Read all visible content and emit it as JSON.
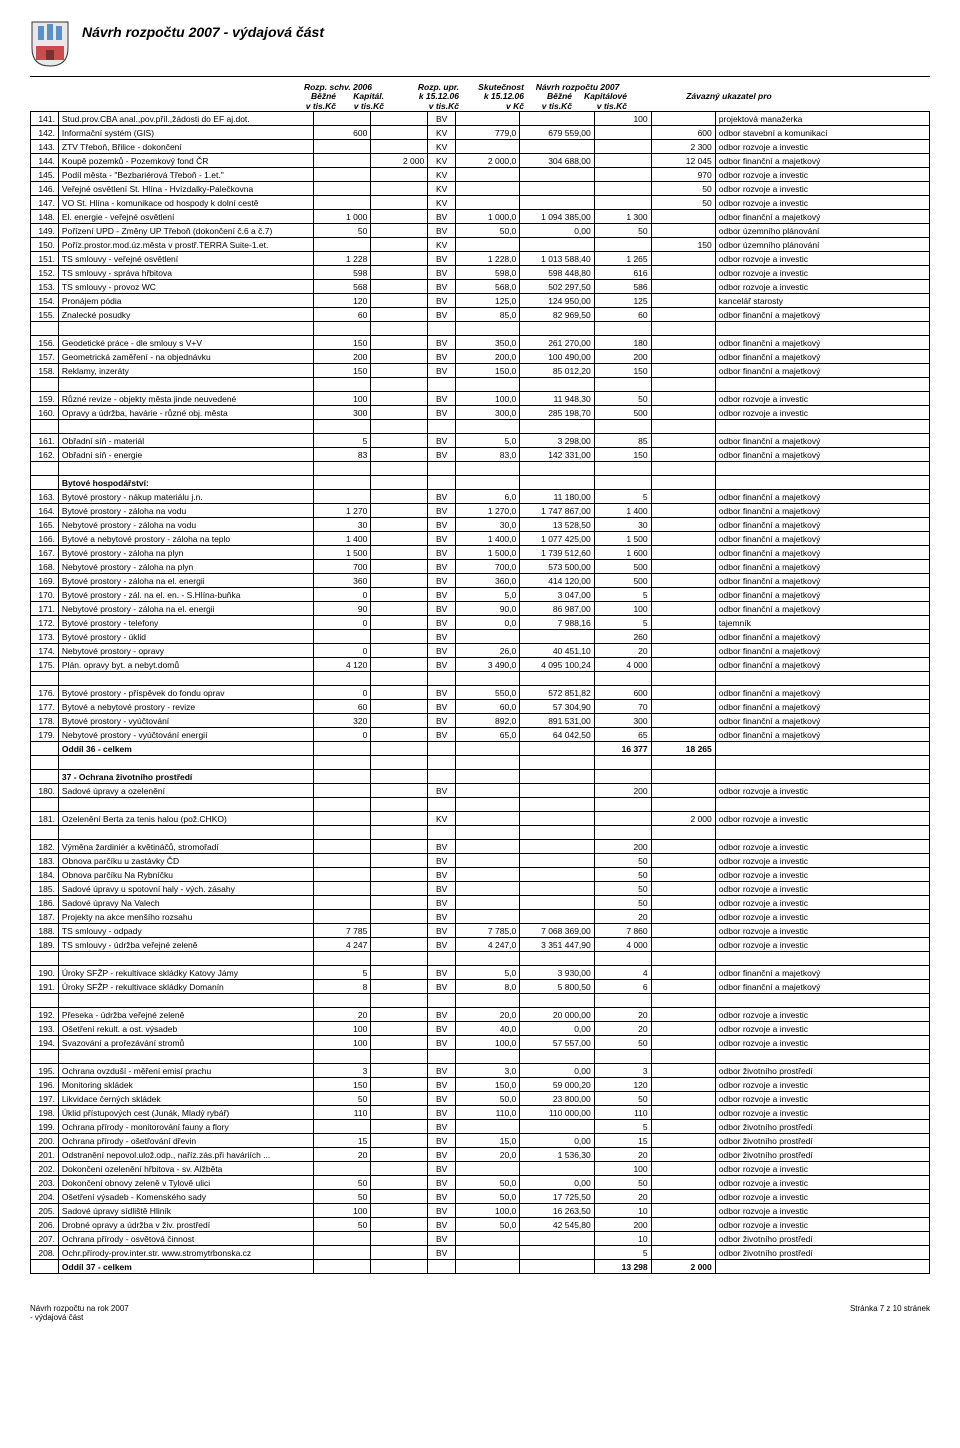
{
  "title": "Návrh rozpočtu 2007 - výdajová část",
  "headers": {
    "h1": {
      "a": "Rozp. schv. 2006",
      "b": "Běžné",
      "c": "Kapitál.",
      "d": "v tis.Kč",
      "e": "v tis.Kč"
    },
    "h2": {
      "a": "Rozp. upr.",
      "b": "k 15.12.06",
      "c": "v tis.Kč"
    },
    "h3": {
      "a": "Skutečnost",
      "b": "k 15.12.06",
      "c": "v Kč"
    },
    "h4": {
      "a": "Návrh rozpočtu 2007",
      "b": "Běžné",
      "c": "Kapitálové",
      "d": "v tis.Kč",
      "e": "v tis.Kč"
    },
    "h5": "Závazný ukazatel pro"
  },
  "footer": {
    "left1": "Návrh rozpočtu na rok 2007",
    "left2": "- výdajová část",
    "right": "Stránka 7 z 10 stránek"
  },
  "rows": [
    {
      "n": "141.",
      "d": "Stud.prov.CBA anal.,pov.příl.,žádosti do EF aj.dot.",
      "t": "BV",
      "navb": "100",
      "note": "projektová manažerka"
    },
    {
      "n": "142.",
      "d": "Informační systém (GIS)",
      "b": "600",
      "t": "KV",
      "upr": "779,0",
      "skut": "679 559,00",
      "navk": "600",
      "note": "odbor stavební a komunikací"
    },
    {
      "n": "143.",
      "d": "ZTV Třeboň, Břilice - dokončení",
      "t": "KV",
      "navk": "2 300",
      "note": "odbor rozvoje a investic"
    },
    {
      "n": "144.",
      "d": "Koupě pozemků - Pozemkový fond ČR",
      "k": "2 000",
      "t": "KV",
      "upr": "2 000,0",
      "skut": "304 688,00",
      "navk": "12 045",
      "note": "odbor finanční a majetkový"
    },
    {
      "n": "145.",
      "d": "Podíl města - \"Bezbariérová Třeboň - 1.et.\"",
      "t": "KV",
      "navk": "970",
      "note": "odbor rozvoje a investic"
    },
    {
      "n": "146.",
      "d": "Veřejné osvětlení St. Hlína - Hvízdalky-Palečkovna",
      "t": "KV",
      "navk": "50",
      "note": "odbor rozvoje a investic"
    },
    {
      "n": "147.",
      "d": "VO St. Hlína - komunikace od hospody k dolní cestě",
      "t": "KV",
      "navk": "50",
      "note": "odbor rozvoje a investic"
    },
    {
      "n": "148.",
      "d": "El. energie - veřejné osvětlení",
      "b": "1 000",
      "t": "BV",
      "upr": "1 000,0",
      "skut": "1 094 385,00",
      "navb": "1 300",
      "note": "odbor finanční a majetkový"
    },
    {
      "n": "149.",
      "d": "Pořízení UPD - Změny UP Třeboň (dokončení č.6 a č.7)",
      "b": "50",
      "t": "BV",
      "upr": "50,0",
      "skut": "0,00",
      "navb": "50",
      "note": "odbor územního plánování"
    },
    {
      "n": "150.",
      "d": "Poříz.prostor.mod.úz.města v prostř.TERRA Suite-1.et.",
      "t": "KV",
      "navk": "150",
      "note": "odbor územního plánování"
    },
    {
      "n": "151.",
      "d": "TS smlouvy - veřejné osvětlení",
      "b": "1 228",
      "t": "BV",
      "upr": "1 228,0",
      "skut": "1 013 588,40",
      "navb": "1 265",
      "note": "odbor rozvoje a investic"
    },
    {
      "n": "152.",
      "d": "TS smlouvy - správa hřbitova",
      "b": "598",
      "t": "BV",
      "upr": "598,0",
      "skut": "598 448,80",
      "navb": "616",
      "note": "odbor rozvoje a investic"
    },
    {
      "n": "153.",
      "d": "TS smlouvy - provoz WC",
      "b": "568",
      "t": "BV",
      "upr": "568,0",
      "skut": "502 297,50",
      "navb": "586",
      "note": "odbor rozvoje a investic"
    },
    {
      "n": "154.",
      "d": "Pronájem pódia",
      "b": "120",
      "t": "BV",
      "upr": "125,0",
      "skut": "124 950,00",
      "navb": "125",
      "note": "kancelář starosty"
    },
    {
      "n": "155.",
      "d": "Znalecké posudky",
      "b": "60",
      "t": "BV",
      "upr": "85,0",
      "skut": "82 969,50",
      "navb": "60",
      "note": "odbor finanční a majetkový"
    },
    {
      "spacer": true
    },
    {
      "n": "156.",
      "d": "Geodetické práce - dle smlouy s V+V",
      "b": "150",
      "t": "BV",
      "upr": "350,0",
      "skut": "261 270,00",
      "navb": "180",
      "note": "odbor finanční a majetkový"
    },
    {
      "n": "157.",
      "d": "Geometrická zaměření - na objednávku",
      "b": "200",
      "t": "BV",
      "upr": "200,0",
      "skut": "100 490,00",
      "navb": "200",
      "note": "odbor finanční a majetkový"
    },
    {
      "n": "158.",
      "d": "Reklamy, inzeráty",
      "b": "150",
      "t": "BV",
      "upr": "150,0",
      "skut": "85 012,20",
      "navb": "150",
      "note": "odbor finanční a majetkový"
    },
    {
      "spacer": true
    },
    {
      "n": "159.",
      "d": "Různé revize - objekty města jinde neuvedené",
      "b": "100",
      "t": "BV",
      "upr": "100,0",
      "skut": "11 948,30",
      "navb": "50",
      "note": "odbor rozvoje a investic"
    },
    {
      "n": "160.",
      "d": "Opravy a údržba, havárie - různé obj. města",
      "b": "300",
      "t": "BV",
      "upr": "300,0",
      "skut": "285 198,70",
      "navb": "500",
      "note": "odbor rozvoje a investic"
    },
    {
      "spacer": true
    },
    {
      "n": "161.",
      "d": "Obřadní síň - materiál",
      "b": "5",
      "t": "BV",
      "upr": "5,0",
      "skut": "3 298,00",
      "navb": "85",
      "note": "odbor finanční a majetkový"
    },
    {
      "n": "162.",
      "d": "Obřadní síň - energie",
      "b": "83",
      "t": "BV",
      "upr": "83,0",
      "skut": "142 331,00",
      "navb": "150",
      "note": "odbor finanční a majetkový"
    },
    {
      "spacer": true
    },
    {
      "d": "Bytové hospodářství:",
      "section": true
    },
    {
      "n": "163.",
      "d": "Bytové prostory - nákup materiálu j.n.",
      "t": "BV",
      "upr": "6,0",
      "skut": "11 180,00",
      "navb": "5",
      "note": "odbor finanční a majetkový"
    },
    {
      "n": "164.",
      "d": "Bytové prostory - záloha na vodu",
      "b": "1 270",
      "t": "BV",
      "upr": "1 270,0",
      "skut": "1 747 867,00",
      "navb": "1 400",
      "note": "odbor finanční a majetkový"
    },
    {
      "n": "165.",
      "d": "Nebytové prostory - záloha na vodu",
      "b": "30",
      "t": "BV",
      "upr": "30,0",
      "skut": "13 528,50",
      "navb": "30",
      "note": "odbor finanční a majetkový"
    },
    {
      "n": "166.",
      "d": "Bytové a nebytové prostory - záloha na teplo",
      "b": "1 400",
      "t": "BV",
      "upr": "1 400,0",
      "skut": "1 077 425,00",
      "navb": "1 500",
      "note": "odbor finanční a majetkový"
    },
    {
      "n": "167.",
      "d": "Bytové prostory - záloha na plyn",
      "b": "1 500",
      "t": "BV",
      "upr": "1 500,0",
      "skut": "1 739 512,60",
      "navb": "1 600",
      "note": "odbor finanční a majetkový"
    },
    {
      "n": "168.",
      "d": "Nebytové prostory - záloha na plyn",
      "b": "700",
      "t": "BV",
      "upr": "700,0",
      "skut": "573 500,00",
      "navb": "500",
      "note": "odbor finanční a majetkový"
    },
    {
      "n": "169.",
      "d": "Bytové prostory - záloha na el. energii",
      "b": "360",
      "t": "BV",
      "upr": "360,0",
      "skut": "414 120,00",
      "navb": "500",
      "note": "odbor finanční a majetkový"
    },
    {
      "n": "170.",
      "d": "Bytové prostory - zál. na el. en. - S.Hlína-buňka",
      "b": "0",
      "t": "BV",
      "upr": "5,0",
      "skut": "3 047,00",
      "navb": "5",
      "note": "odbor finanční a majetkový"
    },
    {
      "n": "171.",
      "d": "Nebytové prostory - záloha na el. energii",
      "b": "90",
      "t": "BV",
      "upr": "90,0",
      "skut": "86 987,00",
      "navb": "100",
      "note": "odbor finanční a majetkový"
    },
    {
      "n": "172.",
      "d": "Bytové prostory - telefony",
      "b": "0",
      "t": "BV",
      "upr": "0,0",
      "skut": "7 988,16",
      "navb": "5",
      "note": "tajemník"
    },
    {
      "n": "173.",
      "d": "Bytové prostory - úklid",
      "t": "BV",
      "navb": "260",
      "note": "odbor finanční a majetkový"
    },
    {
      "n": "174.",
      "d": "Nebytové prostory - opravy",
      "b": "0",
      "t": "BV",
      "upr": "26,0",
      "skut": "40 451,10",
      "navb": "20",
      "note": "odbor finanční a majetkový"
    },
    {
      "n": "175.",
      "d": "Plán. opravy byt. a nebyt.domů",
      "b": "4 120",
      "t": "BV",
      "upr": "3 490,0",
      "skut": "4 095 100,24",
      "navb": "4 000",
      "note": "odbor finanční a majetkový"
    },
    {
      "spacer": true
    },
    {
      "n": "176.",
      "d": "Bytové prostory - příspěvek do fondu oprav",
      "b": "0",
      "t": "BV",
      "upr": "550,0",
      "skut": "572 851,82",
      "navb": "600",
      "note": "odbor finanční a majetkový"
    },
    {
      "n": "177.",
      "d": "Bytové a nebytové prostory - revize",
      "b": "60",
      "t": "BV",
      "upr": "60,0",
      "skut": "57 304,90",
      "navb": "70",
      "note": "odbor finanční a majetkový"
    },
    {
      "n": "178.",
      "d": "Bytové prostory - vyúčtování",
      "b": "320",
      "t": "BV",
      "upr": "892,0",
      "skut": "891 531,00",
      "navb": "300",
      "note": "odbor finanční a majetkový"
    },
    {
      "n": "179.",
      "d": "Nebytové prostory - vyúčtování energií",
      "b": "0",
      "t": "BV",
      "upr": "65,0",
      "skut": "64 042,50",
      "navb": "65",
      "note": "odbor finanční a majetkový"
    },
    {
      "d": "Oddíl 36 - celkem",
      "navb": "16 377",
      "navk": "18 265",
      "total": true
    },
    {
      "spacer": true
    },
    {
      "d": "37 - Ochrana životního prostředí",
      "section": true
    },
    {
      "n": "180.",
      "d": "Sadové úpravy a ozelenění",
      "t": "BV",
      "navb": "200",
      "note": "odbor rozvoje a investic"
    },
    {
      "spacer": true
    },
    {
      "n": "181.",
      "d": "Ozelenění Berta za tenis halou (pož.CHKO)",
      "t": "KV",
      "navk": "2 000",
      "note": "odbor rozvoje a investic"
    },
    {
      "spacer": true
    },
    {
      "n": "182.",
      "d": "Výměna žardiniér a květináčů, stromořadí",
      "t": "BV",
      "navb": "200",
      "note": "odbor rozvoje a investic"
    },
    {
      "n": "183.",
      "d": "Obnova parčíku u zastávky ČD",
      "t": "BV",
      "navb": "50",
      "note": "odbor rozvoje a investic"
    },
    {
      "n": "184.",
      "d": "Obnova parčíku Na Rybníčku",
      "t": "BV",
      "navb": "50",
      "note": "odbor rozvoje a investic"
    },
    {
      "n": "185.",
      "d": "Sadové úpravy u spotovní haly - vých. zásahy",
      "t": "BV",
      "navb": "50",
      "note": "odbor rozvoje a investic"
    },
    {
      "n": "186.",
      "d": "Sadové úpravy Na Valech",
      "t": "BV",
      "navb": "50",
      "note": "odbor rozvoje a investic"
    },
    {
      "n": "187.",
      "d": "Projekty na akce menšího rozsahu",
      "t": "BV",
      "navb": "20",
      "note": "odbor rozvoje a investic"
    },
    {
      "n": "188.",
      "d": "TS smlouvy - odpady",
      "b": "7 785",
      "t": "BV",
      "upr": "7 785,0",
      "skut": "7 068 369,00",
      "navb": "7 860",
      "note": "odbor rozvoje a investic"
    },
    {
      "n": "189.",
      "d": "TS smlouvy - údržba veřejné zeleně",
      "b": "4 247",
      "t": "BV",
      "upr": "4 247,0",
      "skut": "3 351 447,90",
      "navb": "4 000",
      "note": "odbor rozvoje a investic"
    },
    {
      "spacer": true
    },
    {
      "n": "190.",
      "d": "Úroky SFŽP - rekultivace skládky Katovy Jámy",
      "b": "5",
      "t": "BV",
      "upr": "5,0",
      "skut": "3 930,00",
      "navb": "4",
      "note": "odbor finanční a majetkový"
    },
    {
      "n": "191.",
      "d": "Úroky SFŽP - rekultivace skládky Domanín",
      "b": "8",
      "t": "BV",
      "upr": "8,0",
      "skut": "5 800,50",
      "navb": "6",
      "note": "odbor finanční a majetkový"
    },
    {
      "spacer": true
    },
    {
      "n": "192.",
      "d": "Přeseka - údržba veřejné zeleně",
      "b": "20",
      "t": "BV",
      "upr": "20,0",
      "skut": "20 000,00",
      "navb": "20",
      "note": "odbor rozvoje a investic"
    },
    {
      "n": "193.",
      "d": "Ošetření rekult. a ost. výsadeb",
      "b": "100",
      "t": "BV",
      "upr": "40,0",
      "skut": "0,00",
      "navb": "20",
      "note": "odbor rozvoje a investic"
    },
    {
      "n": "194.",
      "d": "Svazování a prořezávání stromů",
      "b": "100",
      "t": "BV",
      "upr": "100,0",
      "skut": "57 557,00",
      "navb": "50",
      "note": "odbor rozvoje a investic"
    },
    {
      "spacer": true
    },
    {
      "n": "195.",
      "d": "Ochrana ovzduší - měření emisí prachu",
      "b": "3",
      "t": "BV",
      "upr": "3,0",
      "skut": "0,00",
      "navb": "3",
      "note": "odbor životního prostředí"
    },
    {
      "n": "196.",
      "d": "Monitoring skládek",
      "b": "150",
      "t": "BV",
      "upr": "150,0",
      "skut": "59 000,20",
      "navb": "120",
      "note": "odbor rozvoje a investic"
    },
    {
      "n": "197.",
      "d": "Likvidace černých skládek",
      "b": "50",
      "t": "BV",
      "upr": "50,0",
      "skut": "23 800,00",
      "navb": "50",
      "note": "odbor rozvoje a investic"
    },
    {
      "n": "198.",
      "d": "Úklid přístupových cest (Junák, Mladý rybář)",
      "b": "110",
      "t": "BV",
      "upr": "110,0",
      "skut": "110 000,00",
      "navb": "110",
      "note": "odbor rozvoje a investic"
    },
    {
      "n": "199.",
      "d": "Ochrana přírody - monitorování fauny a flory",
      "t": "BV",
      "navb": "5",
      "note": "odbor životního prostředí"
    },
    {
      "n": "200.",
      "d": "Ochrana přírody - ošetřování dřevin",
      "b": "15",
      "t": "BV",
      "upr": "15,0",
      "skut": "0,00",
      "navb": "15",
      "note": "odbor životního prostředí"
    },
    {
      "n": "201.",
      "d": "Odstranění nepovol.ulož.odp., naříz.zás.při haváriích ...",
      "b": "20",
      "t": "BV",
      "upr": "20,0",
      "skut": "1 536,30",
      "navb": "20",
      "note": "odbor životního prostředí"
    },
    {
      "n": "202.",
      "d": "Dokončení ozelenění hřbitova - sv. Alžběta",
      "t": "BV",
      "navb": "100",
      "note": "odbor rozvoje a investic"
    },
    {
      "n": "203.",
      "d": "Dokončení obnovy zeleně v Tylově ulici",
      "b": "50",
      "t": "BV",
      "upr": "50,0",
      "skut": "0,00",
      "navb": "50",
      "note": "odbor rozvoje a investic"
    },
    {
      "n": "204.",
      "d": "Ošetření výsadeb - Komenského sady",
      "b": "50",
      "t": "BV",
      "upr": "50,0",
      "skut": "17 725,50",
      "navb": "20",
      "note": "odbor rozvoje a investic"
    },
    {
      "n": "205.",
      "d": "Sadové úpravy sídliště Hliník",
      "b": "100",
      "t": "BV",
      "upr": "100,0",
      "skut": "16 263,50",
      "navb": "10",
      "note": "odbor rozvoje a investic"
    },
    {
      "n": "206.",
      "d": "Drobné opravy a údržba v živ. prostředí",
      "b": "50",
      "t": "BV",
      "upr": "50,0",
      "skut": "42 545,80",
      "navb": "200",
      "note": "odbor rozvoje a investic"
    },
    {
      "n": "207.",
      "d": "Ochrana přírody - osvětová činnost",
      "t": "BV",
      "navb": "10",
      "note": "odbor životního prostředí"
    },
    {
      "n": "208.",
      "d": "Ochr.přírody-prov.inter.str. www.stromytrbonska.cz",
      "t": "BV",
      "navb": "5",
      "note": "odbor životního prostředí"
    },
    {
      "d": "Oddíl 37 - celkem",
      "navb": "13 298",
      "navk": "2 000",
      "total": true
    }
  ]
}
